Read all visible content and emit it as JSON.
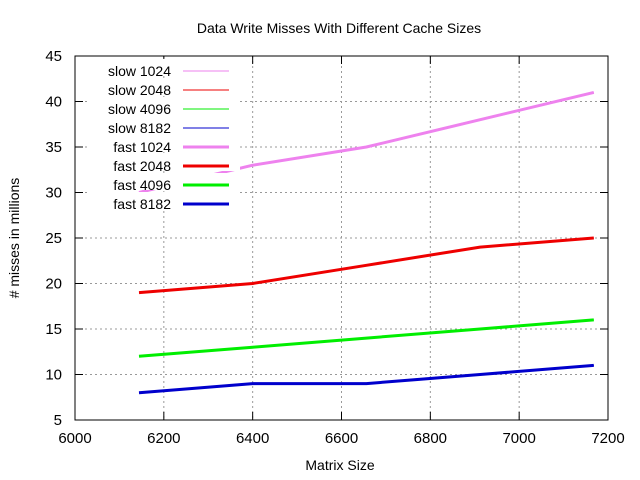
{
  "chart_data": {
    "type": "line",
    "title": "Data Write Misses With Different Cache Sizes",
    "xlabel": "Matrix Size",
    "ylabel": "# misses in millions",
    "xlim": [
      6000,
      7200
    ],
    "ylim": [
      5,
      45
    ],
    "xticks": [
      6000,
      6200,
      6400,
      6600,
      6800,
      7000,
      7200
    ],
    "yticks": [
      5,
      10,
      15,
      20,
      25,
      30,
      35,
      40,
      45
    ],
    "grid": true,
    "legend_position": "top-left",
    "series": [
      {
        "name": "slow 1024",
        "color": "#ee82ee",
        "style": "thin",
        "x": [
          6144,
          6400,
          6656,
          6912,
          7168
        ],
        "y": [
          30,
          33,
          35,
          38,
          41
        ]
      },
      {
        "name": "slow 2048",
        "color": "#ee0000",
        "style": "thin",
        "x": [
          6144,
          6400,
          6656,
          6912,
          7168
        ],
        "y": [
          19,
          20,
          22,
          24,
          25
        ]
      },
      {
        "name": "slow 4096",
        "color": "#00ee00",
        "style": "thin",
        "x": [
          6144,
          6400,
          6656,
          6912,
          7168
        ],
        "y": [
          12,
          13,
          14,
          15,
          16
        ]
      },
      {
        "name": "slow 8182",
        "color": "#0000cc",
        "style": "thin",
        "x": [
          6144,
          6400,
          6656,
          6912,
          7168
        ],
        "y": [
          8,
          9,
          9,
          10,
          11
        ]
      },
      {
        "name": "fast 1024",
        "color": "#ee82ee",
        "style": "thick",
        "x": [
          6144,
          6400,
          6656,
          6912,
          7168
        ],
        "y": [
          30,
          33,
          35,
          38,
          41
        ]
      },
      {
        "name": "fast 2048",
        "color": "#ee0000",
        "style": "thick",
        "x": [
          6144,
          6400,
          6656,
          6912,
          7168
        ],
        "y": [
          19,
          20,
          22,
          24,
          25
        ]
      },
      {
        "name": "fast 4096",
        "color": "#00ee00",
        "style": "thick",
        "x": [
          6144,
          6400,
          6656,
          6912,
          7168
        ],
        "y": [
          12,
          13,
          14,
          15,
          16
        ]
      },
      {
        "name": "fast 8182",
        "color": "#0000cc",
        "style": "thick",
        "x": [
          6144,
          6400,
          6656,
          6912,
          7168
        ],
        "y": [
          8,
          9,
          9,
          10,
          11
        ]
      }
    ]
  }
}
